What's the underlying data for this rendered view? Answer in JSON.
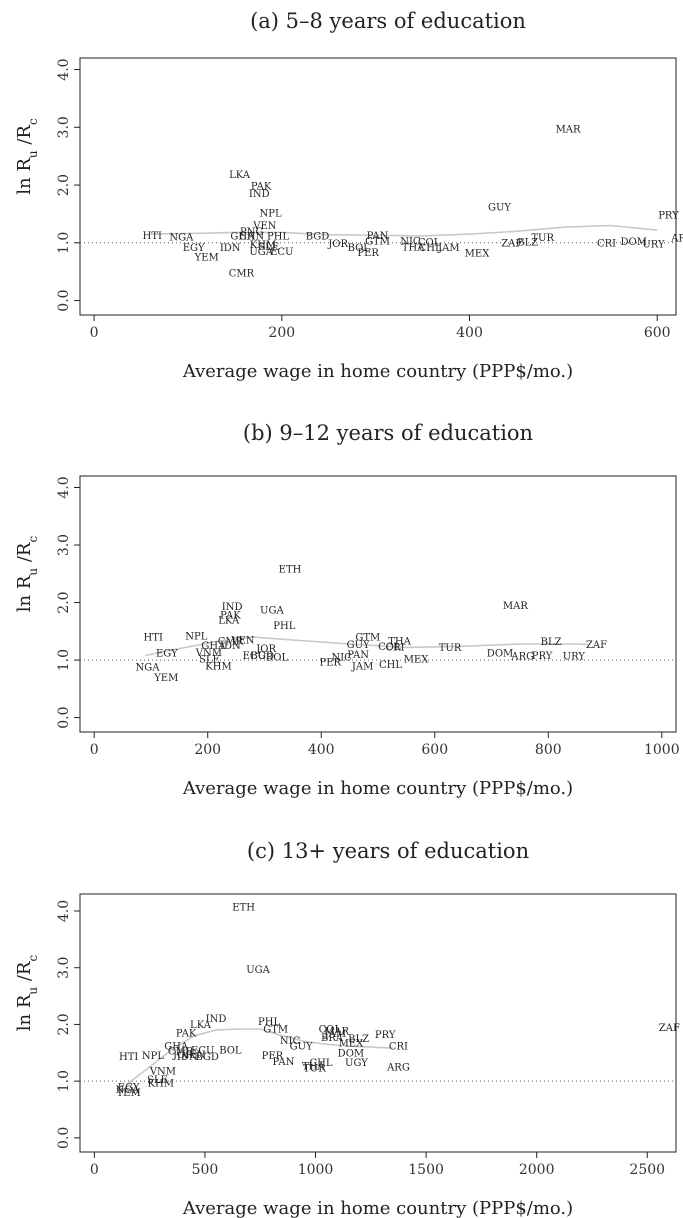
{
  "chart_data": [
    {
      "type": "scatter",
      "title": "(a) 5–8 years of education",
      "xlabel": "Average wage in home country (PPP$/mo.)",
      "ylabel_main": "ln R",
      "ylabel_sub1": "u",
      "ylabel_mid": " /R",
      "ylabel_sub2": "c",
      "xlim": [
        -15,
        620
      ],
      "ylim": [
        -0.25,
        4.2
      ],
      "xticks": [
        0,
        200,
        400,
        600
      ],
      "yticks": [
        0,
        1,
        2,
        3,
        4
      ],
      "ytick_labels": [
        "0.0",
        "1.0",
        "2.0",
        "3.0",
        "4.0"
      ],
      "reference_y": 1.0,
      "smooth": [
        [
          60,
          1.15
        ],
        [
          100,
          1.16
        ],
        [
          150,
          1.18
        ],
        [
          200,
          1.18
        ],
        [
          250,
          1.14
        ],
        [
          300,
          1.13
        ],
        [
          350,
          1.12
        ],
        [
          400,
          1.15
        ],
        [
          450,
          1.2
        ],
        [
          500,
          1.27
        ],
        [
          550,
          1.3
        ],
        [
          600,
          1.22
        ]
      ],
      "points": [
        {
          "label": "MAR",
          "x": 505,
          "y": 2.97
        },
        {
          "label": "LKA",
          "x": 155,
          "y": 2.18
        },
        {
          "label": "PAK",
          "x": 178,
          "y": 1.98
        },
        {
          "label": "IND",
          "x": 176,
          "y": 1.85
        },
        {
          "label": "GUY",
          "x": 432,
          "y": 1.62
        },
        {
          "label": "PRY",
          "x": 612,
          "y": 1.48
        },
        {
          "label": "NPL",
          "x": 188,
          "y": 1.52
        },
        {
          "label": "VEN",
          "x": 182,
          "y": 1.3
        },
        {
          "label": "HTI",
          "x": 62,
          "y": 1.13
        },
        {
          "label": "NGA",
          "x": 93,
          "y": 1.1
        },
        {
          "label": "PNG",
          "x": 168,
          "y": 1.2
        },
        {
          "label": "GHA",
          "x": 158,
          "y": 1.12
        },
        {
          "label": "CHN",
          "x": 168,
          "y": 1.12
        },
        {
          "label": "PHL",
          "x": 196,
          "y": 1.12
        },
        {
          "label": "BGD",
          "x": 238,
          "y": 1.12
        },
        {
          "label": "PAN",
          "x": 302,
          "y": 1.13
        },
        {
          "label": "GTM",
          "x": 302,
          "y": 1.03
        },
        {
          "label": "NIC",
          "x": 337,
          "y": 1.03
        },
        {
          "label": "COL",
          "x": 357,
          "y": 1.01
        },
        {
          "label": "TUR",
          "x": 478,
          "y": 1.09
        },
        {
          "label": "ARG",
          "x": 627,
          "y": 1.08
        },
        {
          "label": "EGY",
          "x": 106,
          "y": 0.92
        },
        {
          "label": "IDN",
          "x": 145,
          "y": 0.92
        },
        {
          "label": "KHM",
          "x": 180,
          "y": 0.97
        },
        {
          "label": "SLE",
          "x": 186,
          "y": 0.94
        },
        {
          "label": "UGA",
          "x": 178,
          "y": 0.85
        },
        {
          "label": "ECU",
          "x": 200,
          "y": 0.85
        },
        {
          "label": "JOR",
          "x": 260,
          "y": 0.99
        },
        {
          "label": "BOL",
          "x": 282,
          "y": 0.92
        },
        {
          "label": "PER",
          "x": 292,
          "y": 0.83
        },
        {
          "label": "THA",
          "x": 340,
          "y": 0.93
        },
        {
          "label": "CHL",
          "x": 358,
          "y": 0.92
        },
        {
          "label": "JAM",
          "x": 378,
          "y": 0.92
        },
        {
          "label": "MEX",
          "x": 408,
          "y": 0.82
        },
        {
          "label": "ZAF",
          "x": 445,
          "y": 1.0
        },
        {
          "label": "BLZ",
          "x": 462,
          "y": 1.01
        },
        {
          "label": "CRI",
          "x": 546,
          "y": 1.0
        },
        {
          "label": "DOM",
          "x": 575,
          "y": 1.02
        },
        {
          "label": "URY",
          "x": 596,
          "y": 0.98
        },
        {
          "label": "YEM",
          "x": 120,
          "y": 0.75
        },
        {
          "label": "CMR",
          "x": 157,
          "y": 0.48
        }
      ]
    },
    {
      "type": "scatter",
      "title": "(b) 9–12 years of education",
      "xlabel": "Average wage in home country (PPP$/mo.)",
      "ylabel_main": "ln R",
      "ylabel_sub1": "u",
      "ylabel_mid": " /R",
      "ylabel_sub2": "c",
      "xlim": [
        -25,
        1025
      ],
      "ylim": [
        -0.25,
        4.2
      ],
      "xticks": [
        0,
        200,
        400,
        600,
        800,
        1000
      ],
      "yticks": [
        0,
        1,
        2,
        3,
        4
      ],
      "ytick_labels": [
        "0.0",
        "1.0",
        "2.0",
        "3.0",
        "4.0"
      ],
      "reference_y": 1.0,
      "smooth": [
        [
          90,
          1.08
        ],
        [
          150,
          1.2
        ],
        [
          220,
          1.33
        ],
        [
          280,
          1.4
        ],
        [
          350,
          1.35
        ],
        [
          450,
          1.28
        ],
        [
          550,
          1.22
        ],
        [
          650,
          1.24
        ],
        [
          750,
          1.28
        ],
        [
          850,
          1.28
        ],
        [
          870,
          1.27
        ]
      ],
      "points": [
        {
          "label": "ETH",
          "x": 345,
          "y": 2.58
        },
        {
          "label": "MAR",
          "x": 742,
          "y": 1.95
        },
        {
          "label": "IND",
          "x": 243,
          "y": 1.93
        },
        {
          "label": "UGA",
          "x": 313,
          "y": 1.87
        },
        {
          "label": "PAK",
          "x": 240,
          "y": 1.78
        },
        {
          "label": "LKA",
          "x": 237,
          "y": 1.7
        },
        {
          "label": "PHL",
          "x": 335,
          "y": 1.6
        },
        {
          "label": "HTI",
          "x": 104,
          "y": 1.4
        },
        {
          "label": "NPL",
          "x": 180,
          "y": 1.42
        },
        {
          "label": "GTM",
          "x": 482,
          "y": 1.4
        },
        {
          "label": "CMR",
          "x": 240,
          "y": 1.33
        },
        {
          "label": "VEN",
          "x": 262,
          "y": 1.35
        },
        {
          "label": "THA",
          "x": 538,
          "y": 1.33
        },
        {
          "label": "BLZ",
          "x": 805,
          "y": 1.32
        },
        {
          "label": "ZAF",
          "x": 885,
          "y": 1.27
        },
        {
          "label": "GHA",
          "x": 210,
          "y": 1.25
        },
        {
          "label": "IDN",
          "x": 240,
          "y": 1.25
        },
        {
          "label": "GUY",
          "x": 465,
          "y": 1.27
        },
        {
          "label": "COL",
          "x": 520,
          "y": 1.24
        },
        {
          "label": "CRI",
          "x": 530,
          "y": 1.23
        },
        {
          "label": "TUR",
          "x": 627,
          "y": 1.22
        },
        {
          "label": "JOR",
          "x": 303,
          "y": 1.2
        },
        {
          "label": "EGY",
          "x": 128,
          "y": 1.12
        },
        {
          "label": "VNM",
          "x": 202,
          "y": 1.13
        },
        {
          "label": "ECU",
          "x": 282,
          "y": 1.08
        },
        {
          "label": "BGD",
          "x": 296,
          "y": 1.08
        },
        {
          "label": "BOL",
          "x": 322,
          "y": 1.05
        },
        {
          "label": "PAN",
          "x": 465,
          "y": 1.1
        },
        {
          "label": "DOM",
          "x": 715,
          "y": 1.12
        },
        {
          "label": "ARG",
          "x": 755,
          "y": 1.07
        },
        {
          "label": "PRY",
          "x": 789,
          "y": 1.08
        },
        {
          "label": "URY",
          "x": 845,
          "y": 1.07
        },
        {
          "label": "SLE",
          "x": 203,
          "y": 1.02
        },
        {
          "label": "NIC",
          "x": 436,
          "y": 1.05
        },
        {
          "label": "PER",
          "x": 416,
          "y": 0.97
        },
        {
          "label": "MEX",
          "x": 567,
          "y": 1.02
        },
        {
          "label": "NGA",
          "x": 94,
          "y": 0.88
        },
        {
          "label": "KHM",
          "x": 219,
          "y": 0.9
        },
        {
          "label": "JAM",
          "x": 473,
          "y": 0.9
        },
        {
          "label": "CHL",
          "x": 522,
          "y": 0.92
        },
        {
          "label": "YEM",
          "x": 127,
          "y": 0.7
        }
      ]
    },
    {
      "type": "scatter",
      "title": "(c) 13+ years of education",
      "xlabel": "Average wage in home country (PPP$/mo.)",
      "ylabel_main": "ln R",
      "ylabel_sub1": "u",
      "ylabel_mid": " /R",
      "ylabel_sub2": "c",
      "xlim": [
        -65,
        2630
      ],
      "ylim": [
        -0.25,
        4.3
      ],
      "xticks": [
        0,
        500,
        1000,
        1500,
        2000,
        2500
      ],
      "yticks": [
        0,
        1,
        2,
        3,
        4
      ],
      "ytick_labels": [
        "0.0",
        "1.0",
        "2.0",
        "3.0",
        "4.0"
      ],
      "reference_y": 1.0,
      "smooth": [
        [
          150,
          0.95
        ],
        [
          250,
          1.25
        ],
        [
          350,
          1.55
        ],
        [
          450,
          1.8
        ],
        [
          550,
          1.9
        ],
        [
          650,
          1.92
        ],
        [
          750,
          1.92
        ],
        [
          850,
          1.8
        ],
        [
          950,
          1.7
        ],
        [
          1050,
          1.65
        ],
        [
          1150,
          1.62
        ],
        [
          1250,
          1.6
        ],
        [
          1350,
          1.58
        ]
      ],
      "points": [
        {
          "label": "ETH",
          "x": 675,
          "y": 4.07
        },
        {
          "label": "UGA",
          "x": 740,
          "y": 2.97
        },
        {
          "label": "ZAF",
          "x": 2600,
          "y": 1.95
        },
        {
          "label": "PHL",
          "x": 790,
          "y": 2.05
        },
        {
          "label": "IND",
          "x": 550,
          "y": 2.1
        },
        {
          "label": "LKA",
          "x": 480,
          "y": 2.0
        },
        {
          "label": "GTM",
          "x": 820,
          "y": 1.92
        },
        {
          "label": "COL",
          "x": 1065,
          "y": 1.92
        },
        {
          "label": "MAR",
          "x": 1095,
          "y": 1.88
        },
        {
          "label": "PAK",
          "x": 415,
          "y": 1.85
        },
        {
          "label": "JAM",
          "x": 1090,
          "y": 1.84
        },
        {
          "label": "PRY",
          "x": 1315,
          "y": 1.82
        },
        {
          "label": "BRA",
          "x": 1075,
          "y": 1.77
        },
        {
          "label": "BLZ",
          "x": 1195,
          "y": 1.75
        },
        {
          "label": "NIC",
          "x": 885,
          "y": 1.72
        },
        {
          "label": "MEX",
          "x": 1160,
          "y": 1.67
        },
        {
          "label": "CRI",
          "x": 1375,
          "y": 1.62
        },
        {
          "label": "GHA",
          "x": 370,
          "y": 1.62
        },
        {
          "label": "GUY",
          "x": 935,
          "y": 1.62
        },
        {
          "label": "CMR",
          "x": 390,
          "y": 1.53
        },
        {
          "label": "ECU",
          "x": 490,
          "y": 1.55
        },
        {
          "label": "BOL",
          "x": 615,
          "y": 1.55
        },
        {
          "label": "DOM",
          "x": 1160,
          "y": 1.5
        },
        {
          "label": "NPL",
          "x": 265,
          "y": 1.45
        },
        {
          "label": "JOR",
          "x": 400,
          "y": 1.47
        },
        {
          "label": "VEN",
          "x": 450,
          "y": 1.47
        },
        {
          "label": "HTI",
          "x": 155,
          "y": 1.43
        },
        {
          "label": "IDN",
          "x": 420,
          "y": 1.43
        },
        {
          "label": "BGD",
          "x": 510,
          "y": 1.43
        },
        {
          "label": "PER",
          "x": 805,
          "y": 1.45
        },
        {
          "label": "PAN",
          "x": 855,
          "y": 1.35
        },
        {
          "label": "CHL",
          "x": 1025,
          "y": 1.33
        },
        {
          "label": "UGY",
          "x": 1185,
          "y": 1.33
        },
        {
          "label": "THA",
          "x": 990,
          "y": 1.27
        },
        {
          "label": "TUR",
          "x": 995,
          "y": 1.23
        },
        {
          "label": "ARG",
          "x": 1375,
          "y": 1.25
        },
        {
          "label": "VNM",
          "x": 310,
          "y": 1.18
        },
        {
          "label": "SLE",
          "x": 285,
          "y": 1.03
        },
        {
          "label": "KHM",
          "x": 300,
          "y": 0.97
        },
        {
          "label": "EGY",
          "x": 155,
          "y": 0.9
        },
        {
          "label": "NGA",
          "x": 150,
          "y": 0.85
        },
        {
          "label": "YEM",
          "x": 155,
          "y": 0.8
        }
      ]
    }
  ]
}
